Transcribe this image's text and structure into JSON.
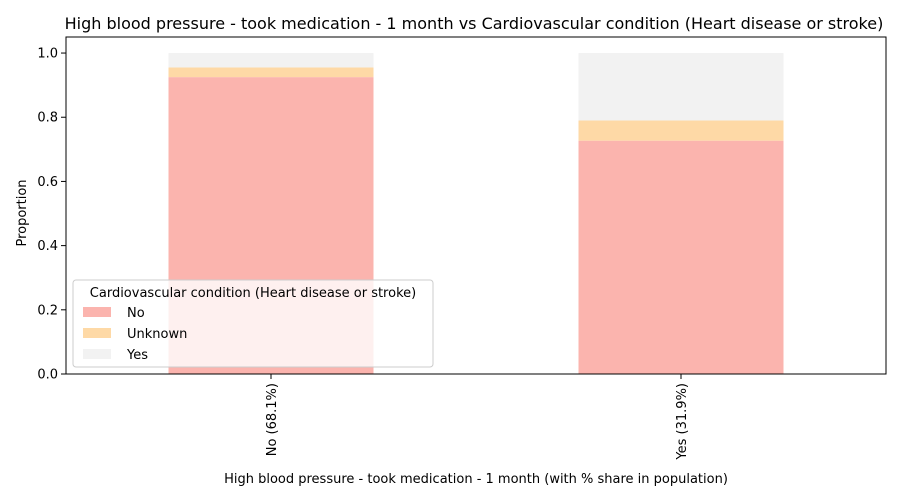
{
  "chart_data": {
    "type": "bar",
    "stacked": true,
    "title": "High blood pressure - took medication - 1 month vs Cardiovascular condition (Heart disease or stroke)",
    "xlabel": "High blood pressure - took medication - 1 month (with % share in population)",
    "ylabel": "Proportion",
    "ylim": [
      0,
      1.05
    ],
    "yticks": [
      "0.0",
      "0.2",
      "0.4",
      "0.6",
      "0.8",
      "1.0"
    ],
    "categories": [
      "No (68.1%)",
      "Yes (31.9%)"
    ],
    "series": [
      {
        "name": "No",
        "color": "#fbb4ae",
        "values": [
          0.925,
          0.727
        ]
      },
      {
        "name": "Unknown",
        "color": "#fed9a6",
        "values": [
          0.03,
          0.063
        ]
      },
      {
        "name": "Yes",
        "color": "#f2f2f2",
        "values": [
          0.045,
          0.21
        ]
      }
    ],
    "legend": {
      "title": "Cardiovascular condition (Heart disease or stroke)",
      "placement": "lower-left"
    },
    "grid": false
  }
}
